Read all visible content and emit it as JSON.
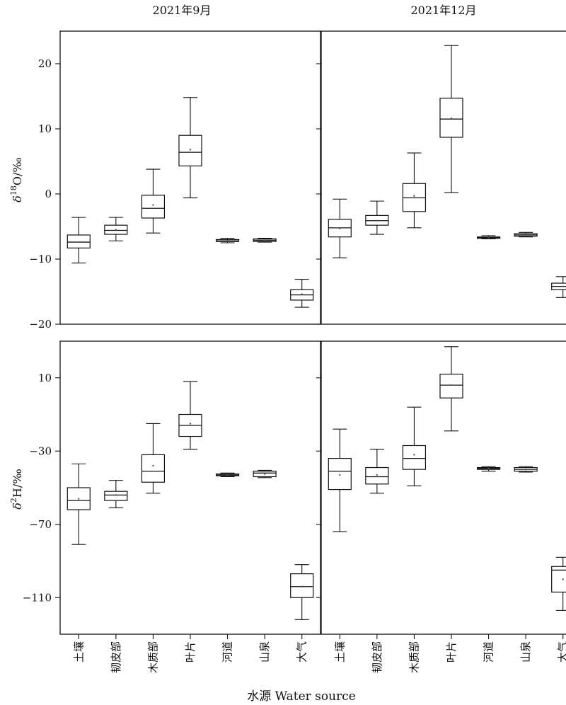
{
  "figure": {
    "xlabel": "水源 Water source",
    "column_titles": [
      "2021年9月",
      "2021年12月"
    ]
  },
  "chart_data": [
    {
      "type": "box",
      "title": "2021年9月",
      "ylabel": "δ18O/‰",
      "ylim": [
        -20,
        25
      ],
      "yticks": [
        20,
        10,
        0,
        -10,
        -20
      ],
      "ytick_labels": [
        "20",
        "10",
        "0",
        "−10",
        "−20"
      ],
      "categories": [
        "土壤",
        "韧皮部",
        "木质部",
        "叶片",
        "河道",
        "山泉",
        "大气"
      ],
      "boxes": [
        {
          "min": -10.6,
          "q1": -8.3,
          "median": -7.4,
          "q3": -6.3,
          "max": -3.6,
          "mean": -7.4
        },
        {
          "min": -7.2,
          "q1": -6.2,
          "median": -5.6,
          "q3": -4.8,
          "max": -3.6,
          "mean": -5.5
        },
        {
          "min": -6.0,
          "q1": -3.7,
          "median": -2.2,
          "q3": -0.2,
          "max": 3.8,
          "mean": -1.7
        },
        {
          "min": -0.6,
          "q1": 4.3,
          "median": 6.4,
          "q3": 9.0,
          "max": 14.8,
          "mean": 6.8
        },
        {
          "min": -7.5,
          "q1": -7.3,
          "median": -7.2,
          "q3": -7.0,
          "max": -6.8,
          "mean": -7.2
        },
        {
          "min": -7.4,
          "q1": -7.3,
          "median": -7.1,
          "q3": -6.9,
          "max": -6.8,
          "mean": -7.1
        },
        {
          "min": -17.4,
          "q1": -16.3,
          "median": -15.5,
          "q3": -14.7,
          "max": -13.1,
          "mean": -15.4
        }
      ]
    },
    {
      "type": "box",
      "title": "2021年12月",
      "ylabel": "δ18O/‰",
      "ylim": [
        -20,
        25
      ],
      "categories": [
        "土壤",
        "韧皮部",
        "木质部",
        "叶片",
        "河道",
        "山泉",
        "大气"
      ],
      "boxes": [
        {
          "min": -9.8,
          "q1": -6.6,
          "median": -5.2,
          "q3": -3.9,
          "max": -0.8,
          "mean": -5.3
        },
        {
          "min": -6.2,
          "q1": -4.8,
          "median": -4.1,
          "q3": -3.3,
          "max": -1.1,
          "mean": -4.1
        },
        {
          "min": -5.2,
          "q1": -2.7,
          "median": -0.6,
          "q3": 1.6,
          "max": 6.3,
          "mean": -0.3
        },
        {
          "min": 0.2,
          "q1": 8.7,
          "median": 11.5,
          "q3": 14.7,
          "max": 22.8,
          "mean": 11.6
        },
        {
          "min": -6.9,
          "q1": -6.8,
          "median": -6.7,
          "q3": -6.6,
          "max": -6.4,
          "mean": -6.7
        },
        {
          "min": -6.6,
          "q1": -6.5,
          "median": -6.3,
          "q3": -6.1,
          "max": -5.9,
          "mean": -6.3
        },
        {
          "min": -15.9,
          "q1": -14.7,
          "median": -14.2,
          "q3": -13.7,
          "max": -12.7,
          "mean": -14.2
        }
      ]
    },
    {
      "type": "box",
      "title": "2021年9月",
      "ylabel": "δ2H/‰",
      "ylim": [
        -130,
        30
      ],
      "yticks": [
        10,
        -30,
        -70,
        -110
      ],
      "ytick_labels": [
        "10",
        "−30",
        "−70",
        "−110"
      ],
      "categories": [
        "土壤",
        "韧皮部",
        "木质部",
        "叶片",
        "河道",
        "山泉",
        "大气"
      ],
      "boxes": [
        {
          "min": -81,
          "q1": -62,
          "median": -57,
          "q3": -50,
          "max": -37,
          "mean": -56
        },
        {
          "min": -61,
          "q1": -57,
          "median": -54,
          "q3": -52,
          "max": -46,
          "mean": -54
        },
        {
          "min": -53,
          "q1": -47,
          "median": -41,
          "q3": -32,
          "max": -15,
          "mean": -38
        },
        {
          "min": -29,
          "q1": -22,
          "median": -16,
          "q3": -10,
          "max": 8,
          "mean": -15
        },
        {
          "min": -44,
          "q1": -43.5,
          "median": -43,
          "q3": -42.5,
          "max": -42,
          "mean": -43
        },
        {
          "min": -44.5,
          "q1": -44,
          "median": -42,
          "q3": -41,
          "max": -40.5,
          "mean": -42.5
        },
        {
          "min": -122,
          "q1": -110,
          "median": -104,
          "q3": -97,
          "max": -92,
          "mean": -104
        }
      ]
    },
    {
      "type": "box",
      "title": "2021年12月",
      "ylabel": "δ2H/‰",
      "ylim": [
        -130,
        30
      ],
      "categories": [
        "土壤",
        "韧皮部",
        "木质部",
        "叶片",
        "河道",
        "山泉",
        "大气"
      ],
      "boxes": [
        {
          "min": -74,
          "q1": -51,
          "median": -41,
          "q3": -34,
          "max": -18,
          "mean": -43
        },
        {
          "min": -53,
          "q1": -48,
          "median": -44,
          "q3": -39,
          "max": -29,
          "mean": -43
        },
        {
          "min": -49,
          "q1": -40,
          "median": -34,
          "q3": -27,
          "max": -6,
          "mean": -32
        },
        {
          "min": -19,
          "q1": -1,
          "median": 6,
          "q3": 12,
          "max": 27,
          "mean": 6
        },
        {
          "min": -41,
          "q1": -40,
          "median": -39.5,
          "q3": -39,
          "max": -38.5,
          "mean": -39.5
        },
        {
          "min": -41.5,
          "q1": -41,
          "median": -40,
          "q3": -39,
          "max": -38.5,
          "mean": -40
        },
        {
          "min": -117,
          "q1": -107,
          "median": -95,
          "q3": -93,
          "max": -88,
          "mean": -100
        }
      ]
    }
  ]
}
